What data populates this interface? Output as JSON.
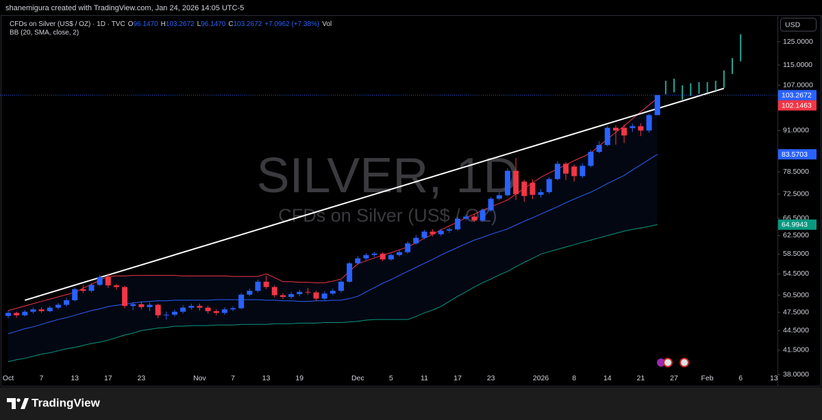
{
  "header": {
    "credit": "shanemigura created with TradingView.com, Jan 24, 2026 14:05 UTC-5"
  },
  "legend": {
    "symbol": "CFDs on Silver (US$ / OZ) · 1D · TVC",
    "o_label": "O",
    "o": "96.1470",
    "h_label": "H",
    "h": "103.2672",
    "l_label": "L",
    "l": "96.1470",
    "c_label": "C",
    "c": "103.2672",
    "change": "+7.0962 (+7.38%)",
    "vol": "Vol",
    "indicator": "BB (20, SMA, close, 2)"
  },
  "currency": "USD",
  "watermark": {
    "symbol": "SILVER, 1D",
    "description": "CFDs on Silver (US$ / OZ)"
  },
  "footer": {
    "brand": "TradingView"
  },
  "chart_data": {
    "type": "candlestick",
    "log_scale": true,
    "grid": false,
    "up_color": "#2962ff",
    "down_color": "#f23645",
    "categories": [
      "Oct",
      null,
      null,
      null,
      "7",
      null,
      null,
      null,
      "13",
      null,
      null,
      null,
      "17",
      null,
      null,
      null,
      "23",
      null,
      null,
      null,
      null,
      null,
      null,
      "Nov",
      null,
      null,
      null,
      "7",
      null,
      null,
      null,
      "13",
      null,
      null,
      null,
      "19",
      null,
      null,
      null,
      null,
      null,
      null,
      "Dec",
      null,
      null,
      null,
      "5",
      null,
      null,
      null,
      "11",
      null,
      null,
      null,
      "17",
      null,
      null,
      null,
      "23",
      null,
      null,
      null,
      null,
      null,
      "2026",
      null,
      null,
      null,
      "8",
      null,
      null,
      null,
      "14",
      null,
      null,
      null,
      "21",
      null,
      null,
      null,
      "27",
      null,
      null,
      null,
      "Feb",
      null,
      null,
      null,
      "6",
      null,
      null,
      null,
      "13",
      null
    ],
    "open": [
      46.9,
      47.4,
      47.0,
      47.6,
      48.0,
      47.7,
      48.3,
      48.8,
      49.6,
      51.6,
      51.3,
      52.4,
      53.9,
      52.3,
      52.0,
      48.6,
      48.9,
      48.4,
      48.8,
      47.0,
      47.1,
      47.6,
      48.3,
      48.6,
      48.3,
      47.7,
      47.4,
      48.0,
      48.2,
      50.6,
      51.3,
      53.0,
      52.0,
      50.5,
      50.2,
      50.7,
      51.1,
      51.0,
      49.9,
      50.8,
      51.3,
      53.0,
      56.6,
      57.6,
      58.3,
      58.6,
      57.4,
      58.3,
      58.9,
      60.8,
      62.0,
      63.4,
      62.8,
      63.6,
      63.9,
      66.4,
      66.9,
      66.0,
      68.4,
      71.3,
      72.2,
      78.8,
      75.8,
      75.5,
      72.3,
      73.0,
      76.5,
      80.8,
      80.0,
      77.3,
      80.2,
      84.3,
      86.4,
      91.9,
      91.9,
      91.8,
      92.4,
      91.0,
      96.147,
      null,
      null,
      null,
      null,
      null,
      null,
      null,
      null,
      null,
      null,
      null,
      null,
      null,
      null,
      null
    ],
    "high": [
      47.8,
      47.6,
      47.9,
      48.3,
      48.4,
      48.6,
      49.1,
      50.0,
      51.9,
      52.4,
      52.8,
      54.3,
      54.6,
      52.6,
      52.2,
      49.3,
      49.4,
      49.2,
      49.0,
      47.6,
      48.0,
      48.7,
      49.0,
      49.0,
      48.6,
      48.0,
      48.3,
      48.5,
      50.9,
      51.7,
      53.4,
      54.2,
      52.3,
      50.9,
      51.1,
      51.5,
      51.8,
      51.3,
      51.2,
      51.7,
      53.3,
      56.9,
      58.1,
      58.7,
      59.0,
      58.9,
      58.6,
      59.4,
      61.2,
      62.6,
      63.8,
      64.0,
      64.0,
      64.3,
      66.9,
      67.4,
      67.5,
      68.8,
      71.7,
      72.9,
      79.5,
      82.5,
      76.3,
      76.5,
      73.8,
      77.0,
      81.6,
      81.3,
      80.6,
      80.9,
      84.9,
      87.6,
      92.6,
      92.7,
      93.0,
      93.3,
      93.4,
      96.6,
      103.2672,
      null,
      null,
      null,
      null,
      null,
      null,
      null,
      null,
      null,
      null,
      null,
      null,
      null,
      null,
      null
    ],
    "low": [
      46.5,
      46.6,
      46.8,
      47.3,
      47.4,
      47.5,
      48.0,
      48.5,
      49.4,
      50.9,
      51.0,
      52.2,
      51.8,
      51.5,
      48.2,
      47.9,
      48.0,
      47.7,
      46.5,
      46.3,
      46.8,
      47.3,
      48.0,
      47.8,
      47.3,
      47.0,
      47.1,
      47.7,
      48.0,
      50.3,
      51.0,
      51.6,
      50.1,
      49.8,
      49.9,
      50.3,
      50.6,
      49.5,
      49.6,
      50.5,
      51.0,
      52.8,
      56.3,
      57.2,
      57.9,
      57.0,
      57.1,
      58.0,
      58.6,
      60.5,
      61.7,
      62.3,
      62.4,
      63.1,
      63.6,
      66.0,
      65.6,
      65.7,
      68.0,
      70.9,
      71.9,
      71.0,
      70.5,
      71.2,
      71.6,
      72.6,
      76.1,
      76.2,
      75.8,
      76.8,
      79.8,
      83.9,
      86.0,
      86.5,
      87.0,
      90.5,
      89.2,
      90.3,
      96.147,
      null,
      null,
      null,
      null,
      null,
      null,
      null,
      null,
      null,
      null,
      null,
      null,
      null,
      null,
      null
    ],
    "close": [
      47.4,
      47.0,
      47.6,
      48.0,
      47.7,
      48.3,
      48.8,
      49.6,
      51.6,
      51.3,
      52.4,
      53.9,
      52.3,
      52.0,
      48.6,
      48.9,
      48.4,
      48.8,
      47.0,
      47.1,
      47.6,
      48.3,
      48.6,
      48.3,
      47.7,
      47.4,
      48.0,
      48.2,
      50.6,
      51.3,
      53.0,
      52.0,
      50.5,
      50.2,
      50.7,
      51.1,
      51.0,
      49.9,
      50.8,
      51.3,
      53.0,
      56.6,
      57.6,
      58.3,
      58.6,
      57.4,
      58.3,
      58.9,
      60.8,
      62.0,
      63.4,
      62.8,
      63.6,
      63.9,
      66.4,
      66.9,
      66.0,
      68.4,
      71.3,
      72.2,
      78.8,
      72.5,
      72.0,
      72.3,
      73.0,
      76.5,
      80.8,
      78.0,
      77.3,
      80.2,
      84.3,
      86.4,
      91.9,
      91.0,
      89.4,
      92.4,
      91.0,
      96.147,
      103.2672,
      null,
      null,
      null,
      null,
      null,
      null,
      null,
      null,
      null,
      null,
      null,
      null,
      null,
      null,
      null
    ],
    "bands": {
      "upper_color": "#f23645",
      "middle_color": "#2962ff",
      "lower_color": "#089981",
      "upper": [
        47.8,
        48.2,
        48.6,
        49.0,
        49.4,
        49.8,
        50.2,
        50.6,
        51.0,
        51.8,
        52.5,
        53.3,
        54.0,
        54.1,
        54.1,
        54.2,
        54.2,
        54.2,
        54.2,
        54.2,
        54.2,
        54.1,
        54.1,
        54.1,
        54.1,
        54.1,
        54.1,
        54.0,
        54.0,
        54.0,
        54.0,
        54.5,
        53.8,
        53.0,
        53.0,
        52.9,
        52.9,
        52.8,
        52.8,
        53.1,
        53.5,
        55.0,
        56.5,
        57.1,
        57.7,
        58.3,
        58.8,
        59.4,
        60.0,
        60.9,
        61.9,
        62.8,
        63.8,
        64.7,
        65.6,
        66.6,
        67.5,
        68.4,
        69.3,
        70.1,
        71.0,
        72.5,
        74.0,
        75.5,
        77.0,
        78.2,
        79.3,
        80.5,
        81.7,
        82.8,
        84.0,
        86.1,
        88.3,
        90.4,
        92.5,
        94.9,
        97.3,
        99.7,
        102.1463,
        null,
        null,
        null,
        null,
        null,
        null,
        null,
        null,
        null,
        null,
        null,
        null,
        null,
        null,
        null
      ],
      "middle": [
        44.0,
        44.4,
        44.8,
        45.1,
        45.5,
        45.9,
        46.3,
        46.6,
        47.0,
        47.4,
        47.8,
        48.1,
        48.5,
        48.7,
        48.9,
        49.1,
        49.3,
        49.4,
        49.5,
        49.5,
        49.6,
        49.6,
        49.6,
        49.6,
        49.6,
        49.7,
        49.7,
        49.7,
        49.7,
        49.7,
        49.7,
        49.6,
        49.6,
        49.5,
        49.5,
        49.4,
        49.4,
        49.5,
        49.5,
        49.6,
        49.6,
        49.9,
        50.3,
        51.1,
        51.9,
        52.7,
        53.4,
        54.2,
        55.0,
        55.8,
        56.6,
        57.4,
        58.3,
        59.1,
        59.9,
        60.7,
        61.5,
        62.1,
        62.8,
        63.4,
        64.0,
        64.9,
        65.8,
        66.6,
        67.5,
        68.4,
        69.3,
        70.3,
        71.2,
        72.1,
        73.0,
        74.1,
        75.3,
        76.4,
        77.5,
        79.0,
        80.5,
        82.0,
        83.5703,
        null,
        null,
        null,
        null,
        null,
        null,
        null,
        null,
        null,
        null,
        null,
        null,
        null,
        null,
        null
      ],
      "lower": [
        39.8,
        40.1,
        40.3,
        40.6,
        40.9,
        41.1,
        41.4,
        41.7,
        41.9,
        42.2,
        42.5,
        42.7,
        43.0,
        43.4,
        43.8,
        44.1,
        44.5,
        44.7,
        44.9,
        45.0,
        45.2,
        45.2,
        45.3,
        45.3,
        45.3,
        45.4,
        45.4,
        45.4,
        45.5,
        45.5,
        45.5,
        45.5,
        45.6,
        45.6,
        45.6,
        45.7,
        45.7,
        45.7,
        45.8,
        45.8,
        45.8,
        45.9,
        46.0,
        46.2,
        46.3,
        46.3,
        46.3,
        46.3,
        46.3,
        46.8,
        47.4,
        47.9,
        48.5,
        49.4,
        50.3,
        51.1,
        52.0,
        52.8,
        53.5,
        54.3,
        55.0,
        55.9,
        56.8,
        57.6,
        58.5,
        59.0,
        59.5,
        60.0,
        60.5,
        61.0,
        61.5,
        62.0,
        62.5,
        63.0,
        63.5,
        63.9,
        64.2,
        64.6,
        64.9943,
        null,
        null,
        null,
        null,
        null,
        null,
        null,
        null,
        null,
        null,
        null,
        null,
        null,
        null,
        null
      ]
    },
    "trendline": {
      "color": "#ffffff",
      "x": [
        2,
        86
      ],
      "values": [
        49.6,
        105.8
      ]
    },
    "projection": {
      "color": "#26a69a",
      "x": [
        79,
        80,
        81,
        82,
        83,
        84,
        85,
        86,
        87,
        88
      ],
      "high": [
        108.7,
        109.5,
        106.9,
        107.7,
        108.2,
        108.2,
        108.7,
        112.8,
        117.9,
        128.4
      ],
      "low": [
        103.6,
        104.3,
        101.6,
        103.0,
        103.8,
        104.1,
        104.9,
        106.1,
        111.4,
        116.5
      ]
    },
    "ylim": [
      37.8,
      135.5
    ],
    "yticks": [
      {
        "value": 125,
        "label": "125.0000"
      },
      {
        "value": 115,
        "label": "115.0000"
      },
      {
        "value": 107,
        "label": "107.0000"
      },
      {
        "value": 91,
        "label": "91.0000"
      },
      {
        "value": 78.5,
        "label": "78.5000"
      },
      {
        "value": 72.5,
        "label": "72.5000"
      },
      {
        "value": 66.5,
        "label": "66.5000"
      },
      {
        "value": 62.5,
        "label": "62.5000"
      },
      {
        "value": 58.5,
        "label": "58.5000"
      },
      {
        "value": 54.5,
        "label": "54.5000"
      },
      {
        "value": 50.5,
        "label": "50.5000"
      },
      {
        "value": 47.5,
        "label": "47.5000"
      },
      {
        "value": 44.5,
        "label": "44.5000"
      },
      {
        "value": 41.5,
        "label": "41.5000"
      },
      {
        "value": 38,
        "label": "38.0000"
      }
    ]
  }
}
